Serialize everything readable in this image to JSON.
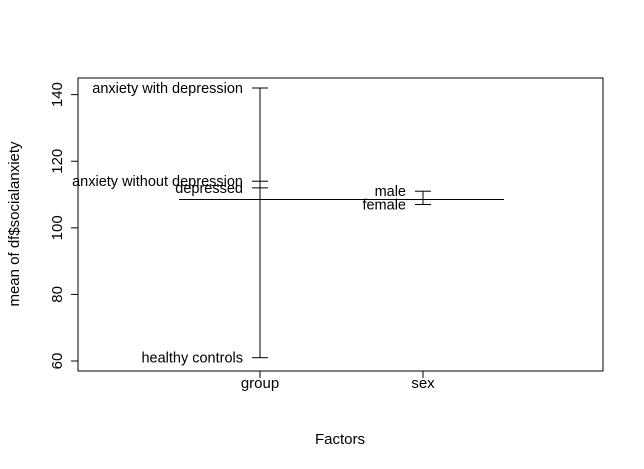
{
  "chart_data": {
    "type": "design-plot",
    "title": "",
    "xlabel": "Factors",
    "ylabel": "mean of df$socialanxiety",
    "ylim": [
      57,
      145
    ],
    "yticks": [
      60,
      80,
      100,
      120,
      140
    ],
    "grand_mean": 108.5,
    "factors": [
      {
        "name": "group",
        "levels": [
          {
            "label": "anxiety with depression",
            "value": 142
          },
          {
            "label": "anxiety without depression",
            "value": 114
          },
          {
            "label": "depressed",
            "value": 112
          },
          {
            "label": "healthy controls",
            "value": 61
          }
        ]
      },
      {
        "name": "sex",
        "levels": [
          {
            "label": "male",
            "value": 111
          },
          {
            "label": "female",
            "value": 107
          }
        ]
      }
    ],
    "grid": false,
    "legend": "none"
  }
}
